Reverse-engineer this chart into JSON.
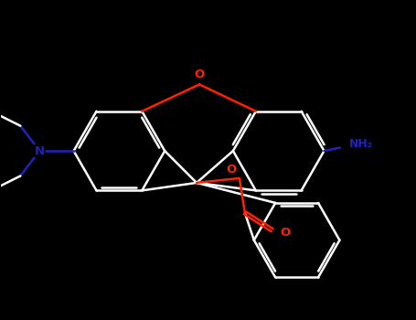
{
  "bg_color": "#000000",
  "bond_color": "#ffffff",
  "o_color": "#ff2200",
  "n_color": "#2222bb",
  "lw": 1.8,
  "figsize": [
    4.55,
    3.5
  ],
  "dpi": 100,
  "xlim": [
    0,
    9.1
  ],
  "ylim": [
    0,
    7.0
  ]
}
